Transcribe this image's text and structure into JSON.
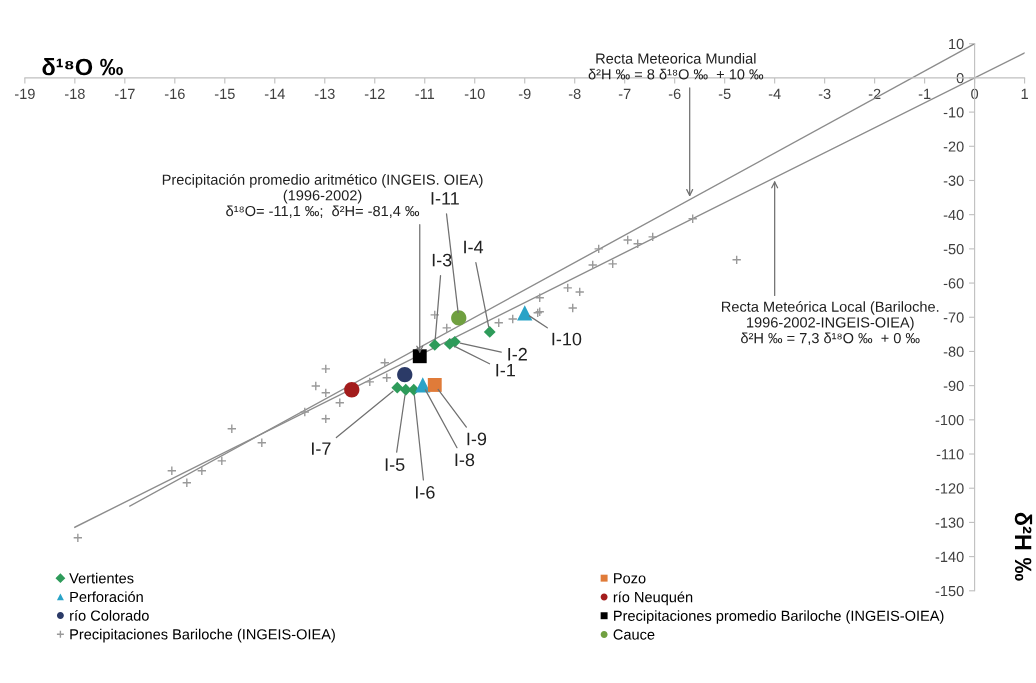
{
  "chart_data": {
    "type": "scatter",
    "xlabel": "δ¹⁸O ‰",
    "ylabel": "δ²H ‰",
    "xlim": [
      -19,
      1
    ],
    "ylim": [
      -150,
      10
    ],
    "xticks": [
      -19,
      -18,
      -17,
      -16,
      -15,
      -14,
      -13,
      -12,
      -11,
      -10,
      -9,
      -8,
      -7,
      -6,
      -5,
      -4,
      -3,
      -2,
      -1,
      0,
      1
    ],
    "yticks": [
      -150,
      -140,
      -130,
      -120,
      -110,
      -100,
      -90,
      -80,
      -70,
      -60,
      -50,
      -40,
      -30,
      -20,
      -10,
      0,
      10
    ],
    "grid": false,
    "legend": "bottom",
    "series": [
      {
        "name": "Vertientes",
        "color": "#2e9b5a",
        "marker": "diamond",
        "x": [
          -10.5,
          -10.4,
          -10.8,
          -9.7,
          -11.38,
          -11.22,
          -11.55
        ],
        "values": [
          -77.8,
          -77.2,
          -78.1,
          -74.3,
          -91.2,
          -91.2,
          -90.6
        ]
      },
      {
        "name": "Perforación",
        "color": "#29a3c7",
        "marker": "triangle",
        "x": [
          -11.04,
          -9.0
        ],
        "values": [
          -89.8,
          -68.7
        ]
      },
      {
        "name": "río Colorado",
        "color": "#2b3a67",
        "marker": "circle",
        "x": [
          -11.4
        ],
        "values": [
          -86.8
        ]
      },
      {
        "name": "Precipitaciones Bariloche (INGEIS-OIEA)",
        "color": "#999999",
        "marker": "cross",
        "x": [
          -17.94,
          -16.06,
          -15.76,
          -15.46,
          -15.06,
          -14.86,
          -14.26,
          -13.4,
          -12.98,
          -13.18,
          -12.98,
          -12.98,
          -12.7,
          -12.1,
          -11.76,
          -11.8,
          -10.8,
          -10.56,
          -9.52,
          -9.24,
          -8.74,
          -8.7,
          -8.14,
          -7.9,
          -8.04,
          -7.64,
          -8.7,
          -7.24,
          -7.52,
          -6.94,
          -6.74,
          -6.44,
          -5.64,
          -4.76
        ],
        "values": [
          -134.5,
          -114.9,
          -118.4,
          -114.9,
          -112.0,
          -102.6,
          -106.7,
          -97.7,
          -85.1,
          -90.1,
          -92.1,
          -99.7,
          -95.0,
          -88.9,
          -87.7,
          -83.3,
          -69.3,
          -73.1,
          -71.6,
          -70.5,
          -68.7,
          -64.3,
          -61.4,
          -62.6,
          -67.3,
          -54.7,
          -68.4,
          -54.4,
          -50.0,
          -47.4,
          -48.5,
          -46.5,
          -41.2,
          -53.2
        ]
      },
      {
        "name": "Pozo",
        "color": "#e07b39",
        "marker": "square",
        "x": [
          -10.8
        ],
        "values": [
          -89.8
        ]
      },
      {
        "name": "río Neuquén",
        "color": "#a31c1c",
        "marker": "circle",
        "x": [
          -12.46
        ],
        "values": [
          -91.2
        ]
      },
      {
        "name": "Precipitaciones promedio Bariloche (INGEIS-OIEA)",
        "color": "#000000",
        "marker": "square",
        "x": [
          -11.1
        ],
        "values": [
          -81.4
        ]
      },
      {
        "name": "Cauce",
        "color": "#70a040",
        "marker": "circle",
        "x": [
          -10.32
        ],
        "values": [
          -70.2
        ]
      },
      {
        "type": "line",
        "color": "#8c8c8c",
        "marker": "none",
        "x": [
          -16.9,
          0
        ],
        "values": [
          -125.2,
          10
        ]
      },
      {
        "type": "line",
        "color": "#8c8c8c",
        "marker": "none",
        "x": [
          -18,
          1
        ],
        "values": [
          -131.4,
          7.3
        ]
      }
    ],
    "annotations": [
      {
        "text": "Precipitación promedio aritmético (INGEIS. OIEA)\n(1996-2002)\nδ¹⁸O= -11,1 ‰;  δ²H= -81,4 ‰",
        "x": -11.1,
        "y": -81.4
      },
      {
        "text": "Recta Meteorica Mundial\nδ²H ‰ = 8 δ¹⁸O ‰  + 10 ‰",
        "x": -5.7,
        "y": -35.6
      },
      {
        "text": "Recta Meteórica Local (Bariloche.\n1996-2002-INGEIS-OIEA)\nδ²H ‰ = 7,3 δ¹⁸O ‰  + 0 ‰",
        "x": -4,
        "y": -29.2
      },
      {
        "text": "I-1",
        "x": -10.5,
        "y": -77.8
      },
      {
        "text": "I-2",
        "x": -10.4,
        "y": -77.2
      },
      {
        "text": "I-3",
        "x": -10.8,
        "y": -78.1
      },
      {
        "text": "I-4",
        "x": -9.7,
        "y": -74.3
      },
      {
        "text": "I-5",
        "x": -11.38,
        "y": -91.2
      },
      {
        "text": "I-6",
        "x": -11.22,
        "y": -91.2
      },
      {
        "text": "I-7",
        "x": -11.55,
        "y": -90.6
      },
      {
        "text": "I-8",
        "x": -11.04,
        "y": -89.8
      },
      {
        "text": "I-9",
        "x": -10.8,
        "y": -89.8
      },
      {
        "text": "I-10",
        "x": -9.0,
        "y": -68.7
      },
      {
        "text": "I-11",
        "x": -10.32,
        "y": -70.2
      }
    ]
  }
}
